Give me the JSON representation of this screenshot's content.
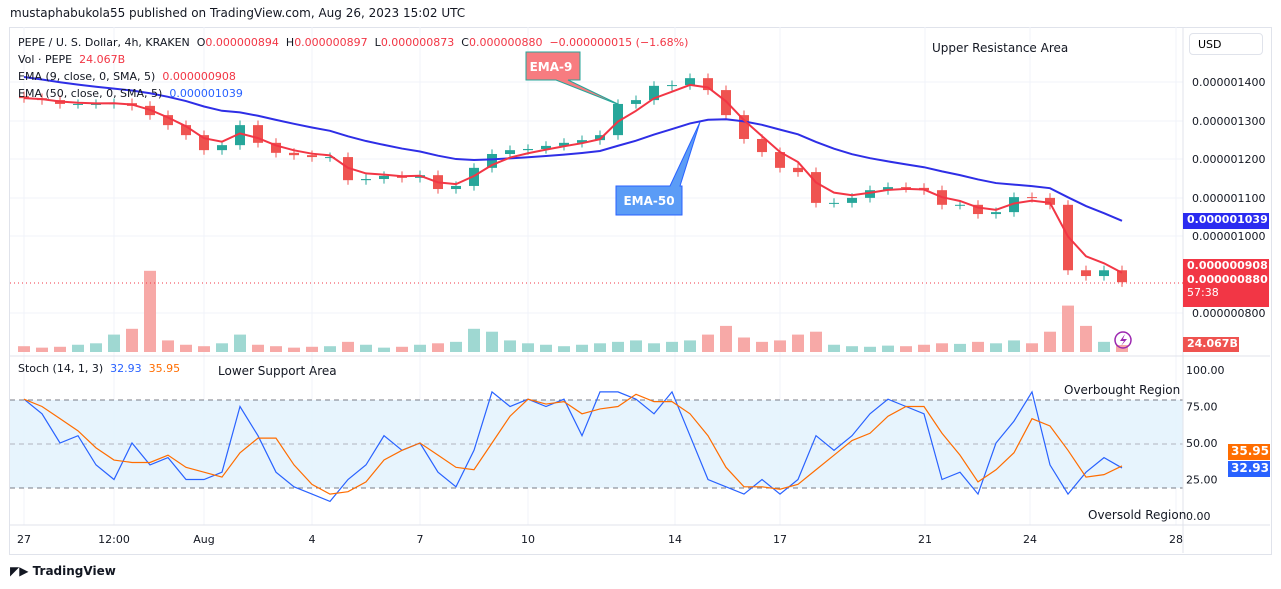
{
  "header": {
    "published": "mustaphabukola55 published on TradingView.com, Aug 26, 2023 15:02 UTC"
  },
  "legend": {
    "symbol": "PEPE / U. S. Dollar, 4h, KRAKEN",
    "o_label": "O",
    "o": "0.000000894",
    "h_label": "H",
    "h": "0.000000897",
    "l_label": "L",
    "l": "0.000000873",
    "c_label": "C",
    "c": "0.000000880",
    "change": "−0.000000015 (−1.68%)",
    "vol_label": "Vol · PEPE",
    "vol": "24.067B",
    "ema9_label": "EMA (9, close, 0, SMA, 5)",
    "ema9": "0.000000908",
    "ema50_label": "EMA (50, close, 0, SMA, 5)",
    "ema50": "0.000001039",
    "stoch_label": "Stoch (14, 1, 3)",
    "stoch_k": "32.93",
    "stoch_d": "35.95"
  },
  "annotations": {
    "ema9_callout": "EMA-9",
    "ema50_callout": "EMA-50",
    "upper": "Upper Resistance Area",
    "lower": "Lower Support Area",
    "overbought": "Overbought Region",
    "oversold": "Oversold Region"
  },
  "price_axis": {
    "currency": "USD",
    "ticks": [
      "0.000001400",
      "0.000001300",
      "0.000001200",
      "0.000001100",
      "0.000001000",
      "0.000000800"
    ],
    "ema50_tag": "0.000001039",
    "ema9_tag": "0.000000908",
    "last_tag": "0.000000880",
    "countdown": "57:38",
    "volume_tag": "24.067B"
  },
  "stoch_axis": {
    "ticks": [
      "100.00",
      "75.00",
      "50.00",
      "25.00",
      "0.00"
    ],
    "d_tag": "35.95",
    "k_tag": "32.93"
  },
  "time_axis": {
    "ticks": [
      "27",
      "12:00",
      "Aug",
      "4",
      "7",
      "10",
      "14",
      "17",
      "21",
      "24",
      "28"
    ]
  },
  "footer": {
    "brand": "TradingView"
  },
  "colors": {
    "up": "#26a69a",
    "down": "#ef5350",
    "ema9": "#f23645",
    "ema50": "#2e2ee6",
    "stoch_k": "#2962ff",
    "stoch_d": "#ff6d00",
    "band": "#e3f2fd"
  },
  "chart_data": {
    "type": "candlestick",
    "title": "PEPE / U. S. Dollar, 4h, KRAKEN",
    "x_start": "2023-07-27 00:00",
    "x_step": "12h",
    "ylim": [
      7.6e-07,
      1.47e-06
    ],
    "close": [
      1.358,
      1.353,
      1.343,
      1.343,
      1.343,
      1.345,
      1.338,
      1.314,
      1.288,
      1.262,
      1.223,
      1.236,
      1.288,
      1.242,
      1.216,
      1.21,
      1.205,
      1.205,
      1.145,
      1.148,
      1.156,
      1.151,
      1.158,
      1.122,
      1.13,
      1.177,
      1.213,
      1.223,
      1.226,
      1.234,
      1.242,
      1.249,
      1.262,
      1.343,
      1.353,
      1.39,
      1.392,
      1.41,
      1.379,
      1.314,
      1.252,
      1.218,
      1.177,
      1.166,
      1.086,
      1.086,
      1.099,
      1.119,
      1.127,
      1.125,
      1.119,
      1.081,
      1.081,
      1.057,
      1.062,
      1.101,
      1.099,
      1.081,
      0.911,
      0.896,
      0.911,
      0.88
    ],
    "close_unit": "1e-6 USD",
    "volume_B": [
      20,
      15,
      18,
      25,
      30,
      60,
      80,
      280,
      40,
      25,
      20,
      30,
      60,
      25,
      20,
      15,
      18,
      20,
      35,
      25,
      15,
      18,
      25,
      30,
      35,
      80,
      70,
      40,
      30,
      25,
      20,
      25,
      30,
      35,
      40,
      30,
      35,
      40,
      60,
      90,
      50,
      35,
      40,
      60,
      70,
      25,
      20,
      18,
      22,
      20,
      25,
      30,
      28,
      35,
      30,
      40,
      30,
      70,
      160,
      90,
      35,
      24.067
    ],
    "stoch": {
      "ylim": [
        0,
        100
      ],
      "overbought": 80,
      "oversold": 20,
      "k": [
        80,
        70,
        50,
        55,
        35,
        25,
        50,
        35,
        40,
        25,
        25,
        30,
        75,
        55,
        30,
        20,
        15,
        10,
        25,
        35,
        55,
        45,
        50,
        30,
        20,
        45,
        85,
        75,
        80,
        75,
        80,
        55,
        85,
        85,
        80,
        70,
        85,
        55,
        25,
        20,
        15,
        25,
        15,
        25,
        55,
        45,
        55,
        70,
        80,
        75,
        70,
        25,
        30,
        15,
        50,
        65,
        85,
        35,
        15,
        30,
        40,
        32.93
      ]
    }
  }
}
